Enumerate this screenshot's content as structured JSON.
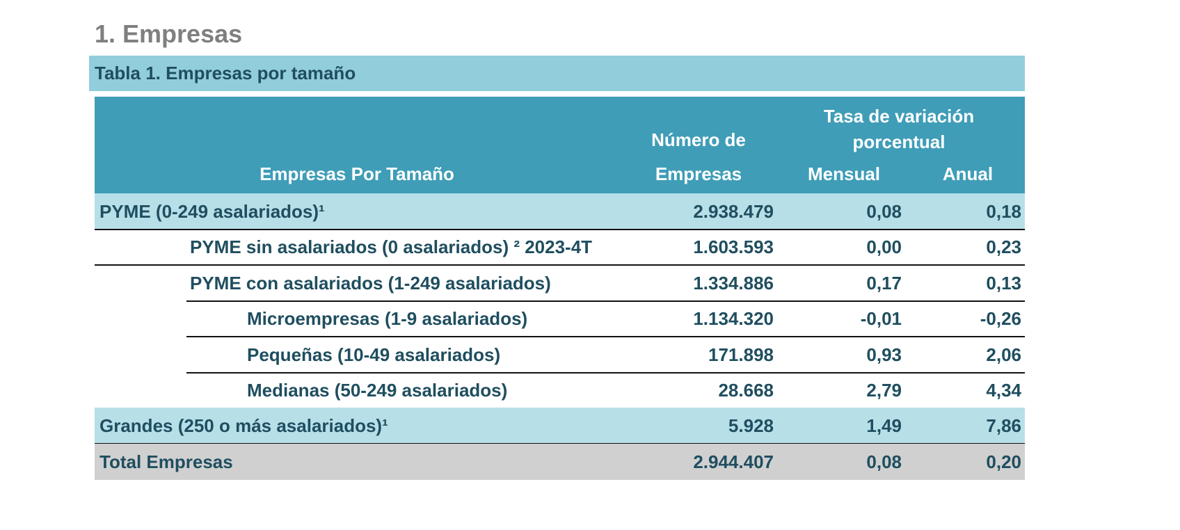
{
  "heading": "1. Empresas",
  "table": {
    "caption": "Tabla 1. Empresas por tamaño",
    "headers": {
      "size": "Empresas Por Tamaño",
      "count_line1": "Número de",
      "count_line2": "Empresas",
      "rate": "Tasa de variación porcentual",
      "monthly": "Mensual",
      "annual": "Anual"
    },
    "rows": [
      [
        "PYME (0-249 asalariados)¹",
        "2.938.479",
        "0,08",
        "0,18"
      ],
      [
        "PYME sin asalariados (0 asalariados) ² 2023-4T",
        "1.603.593",
        "0,00",
        "0,23"
      ],
      [
        "PYME con asalariados (1-249 asalariados)",
        "1.334.886",
        "0,17",
        "0,13"
      ],
      [
        "Microempresas (1-9 asalariados)",
        "1.134.320",
        "-0,01",
        "-0,26"
      ],
      [
        "Pequeñas (10-49 asalariados)",
        "171.898",
        "0,93",
        "2,06"
      ],
      [
        "Medianas (50-249 asalariados)",
        "28.668",
        "2,79",
        "4,34"
      ],
      [
        "Grandes (250 o más asalariados)¹",
        "5.928",
        "1,49",
        "7,86"
      ],
      [
        "Total Empresas",
        "2.944.407",
        "0,08",
        "0,20"
      ]
    ]
  }
}
